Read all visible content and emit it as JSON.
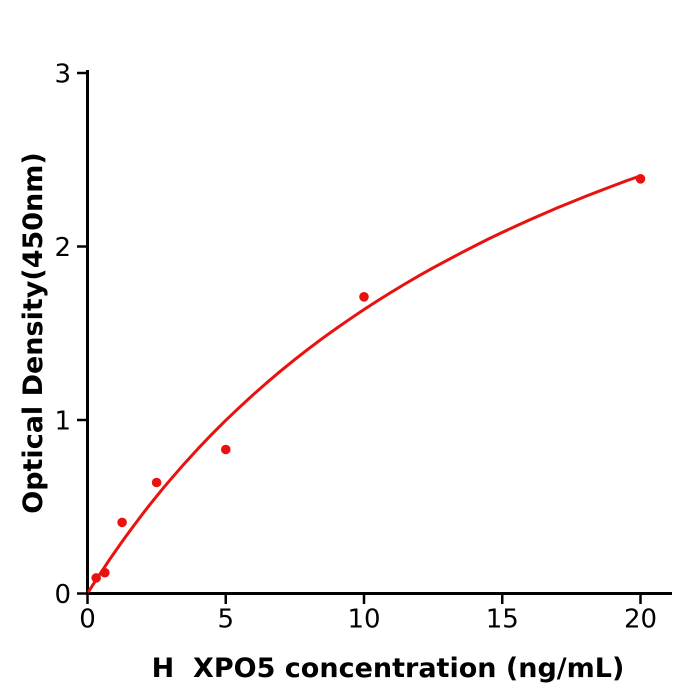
{
  "chart_data": {
    "type": "scatter",
    "title": "",
    "xlabel": "H  XPO5 concentration (ng/mL)",
    "ylabel": "Optical Density(450nm)",
    "x_ticks": [
      0,
      5,
      10,
      15,
      20
    ],
    "y_ticks": [
      0,
      1,
      2,
      3
    ],
    "xlim": [
      0,
      21.1
    ],
    "ylim": [
      0,
      3.02
    ],
    "grid": false,
    "legend": false,
    "colors": {
      "points": "#e8120f",
      "curve": "#e8120f",
      "axis": "#000000",
      "text": "#000000"
    },
    "points": [
      {
        "x": 0.313,
        "y": 0.09
      },
      {
        "x": 0.625,
        "y": 0.12
      },
      {
        "x": 1.25,
        "y": 0.41
      },
      {
        "x": 2.5,
        "y": 0.64
      },
      {
        "x": 5,
        "y": 0.83
      },
      {
        "x": 10,
        "y": 1.71
      },
      {
        "x": 20,
        "y": 2.39
      }
    ],
    "fit_curve": {
      "model": "saturation fit y = 4.55*x/(x+17.8)",
      "points": [
        [
          0.05,
          0.013
        ],
        [
          0.2,
          0.051
        ],
        [
          0.4,
          0.1
        ],
        [
          0.6,
          0.148
        ],
        [
          0.8,
          0.196
        ],
        [
          1.0,
          0.242
        ],
        [
          1.25,
          0.299
        ],
        [
          1.5,
          0.354
        ],
        [
          1.75,
          0.407
        ],
        [
          2.0,
          0.46
        ],
        [
          2.25,
          0.511
        ],
        [
          2.5,
          0.56
        ],
        [
          2.75,
          0.609
        ],
        [
          3.0,
          0.656
        ],
        [
          3.5,
          0.748
        ],
        [
          4.0,
          0.835
        ],
        [
          4.5,
          0.918
        ],
        [
          5.0,
          0.998
        ],
        [
          5.5,
          1.074
        ],
        [
          6.0,
          1.147
        ],
        [
          6.5,
          1.217
        ],
        [
          7.0,
          1.284
        ],
        [
          7.5,
          1.349
        ],
        [
          8.0,
          1.411
        ],
        [
          8.5,
          1.471
        ],
        [
          9.0,
          1.528
        ],
        [
          9.5,
          1.583
        ],
        [
          10,
          1.637
        ],
        [
          10.5,
          1.688
        ],
        [
          11,
          1.738
        ],
        [
          11.5,
          1.786
        ],
        [
          12,
          1.832
        ],
        [
          12.5,
          1.877
        ],
        [
          13,
          1.92
        ],
        [
          13.5,
          1.962
        ],
        [
          14,
          2.003
        ],
        [
          14.5,
          2.043
        ],
        [
          15,
          2.081
        ],
        [
          15.5,
          2.118
        ],
        [
          16,
          2.154
        ],
        [
          16.5,
          2.189
        ],
        [
          17,
          2.223
        ],
        [
          17.5,
          2.256
        ],
        [
          18,
          2.288
        ],
        [
          18.5,
          2.319
        ],
        [
          19,
          2.349
        ],
        [
          19.5,
          2.379
        ],
        [
          20,
          2.407
        ]
      ]
    }
  }
}
